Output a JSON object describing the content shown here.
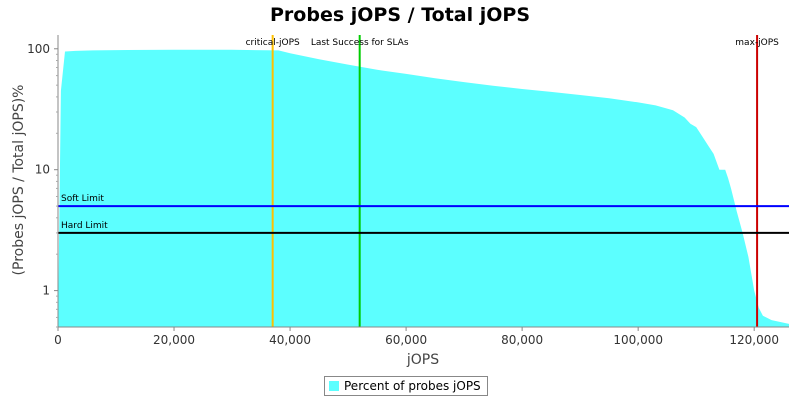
{
  "chart_data": {
    "type": "area",
    "title": "Probes jOPS / Total jOPS",
    "xlabel": "jOPS",
    "ylabel": "(Probes jOPS / Total jOPS)%",
    "xlim": [
      0,
      126000
    ],
    "ylim": [
      0.5,
      130
    ],
    "yscale": "log",
    "x_ticks": [
      0,
      20000,
      40000,
      60000,
      80000,
      100000,
      120000
    ],
    "x_tick_labels": [
      "0",
      "20,000",
      "40,000",
      "60,000",
      "80,000",
      "100,000",
      "120,000"
    ],
    "y_ticks": [
      1,
      10,
      100
    ],
    "y_tick_labels": [
      "1",
      "10",
      "100"
    ],
    "grid": false,
    "legend_position": "bottom",
    "series": [
      {
        "name": "Percent of probes jOPS",
        "color": "#5cffff",
        "x": [
          0,
          500,
          1200,
          3000,
          6000,
          10000,
          20000,
          30000,
          38000,
          40000,
          45000,
          50000,
          55000,
          60000,
          65000,
          70000,
          75000,
          80000,
          85000,
          90000,
          95000,
          100000,
          103000,
          106000,
          108000,
          109000,
          110000,
          111000,
          112000,
          113000,
          114000,
          114500,
          115000,
          115500,
          116000,
          117000,
          118000,
          119000,
          120000,
          120800,
          121500,
          123000,
          126000
        ],
        "y": [
          0.5,
          45,
          95,
          96,
          97,
          97.5,
          98,
          98,
          97,
          92,
          82,
          74,
          67,
          62,
          57,
          53,
          49.5,
          46.5,
          44,
          41.5,
          39,
          36,
          34,
          31,
          27,
          24,
          22.5,
          19,
          16,
          13.5,
          10,
          10,
          10,
          8.5,
          7,
          4.5,
          3,
          1.9,
          1.0,
          0.72,
          0.62,
          0.57,
          0.53
        ]
      }
    ],
    "reference_lines": [
      {
        "orientation": "vertical",
        "label": "critical-jOPS",
        "value": 37000,
        "color": "#ffc000"
      },
      {
        "orientation": "vertical",
        "label": "Last Success for SLAs",
        "value": 52000,
        "color": "#00cc00"
      },
      {
        "orientation": "vertical",
        "label": "max-jOPS",
        "value": 120500,
        "color": "#cc0000"
      },
      {
        "orientation": "horizontal",
        "label": "Soft Limit",
        "value": 5,
        "color": "#0000ff"
      },
      {
        "orientation": "horizontal",
        "label": "Hard Limit",
        "value": 3,
        "color": "#000000"
      }
    ]
  }
}
